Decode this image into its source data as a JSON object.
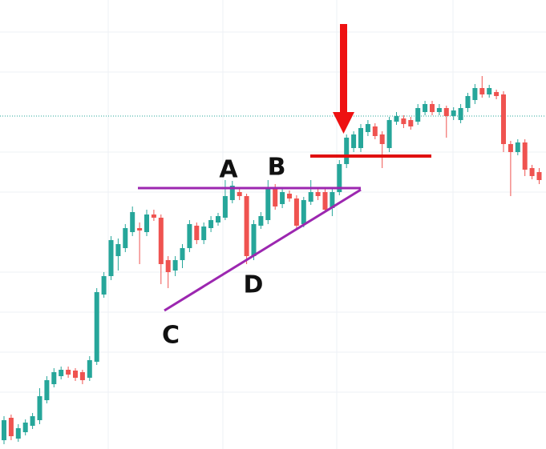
{
  "chart_data": {
    "type": "candlestick",
    "up_color": "#26a69a",
    "down_color": "#ef5350",
    "ylim": [
      0,
      560
    ],
    "open": [
      10,
      38,
      12,
      20,
      28,
      35,
      60,
      80,
      90,
      98,
      97,
      95,
      88,
      108,
      192,
      215,
      240,
      250,
      270,
      275,
      270,
      292,
      288,
      235,
      222,
      235,
      250,
      278,
      260,
      275,
      282,
      288,
      310,
      320,
      315,
      240,
      278,
      285,
      325,
      305,
      318,
      312,
      280,
      308,
      320,
      320,
      300,
      320,
      355,
      375,
      375,
      395,
      402,
      392,
      375,
      408,
      412,
      410,
      408,
      420,
      430,
      420,
      425,
      415,
      410,
      425,
      435,
      450,
      442,
      445,
      442,
      380,
      370,
      382,
      350,
      345
    ],
    "close": [
      35,
      15,
      25,
      32,
      40,
      65,
      85,
      95,
      98,
      92,
      88,
      85,
      110,
      195,
      215,
      260,
      255,
      275,
      295,
      272,
      292,
      288,
      230,
      220,
      235,
      250,
      280,
      260,
      277,
      285,
      290,
      315,
      328,
      315,
      240,
      280,
      290,
      325,
      302,
      320,
      312,
      278,
      310,
      320,
      315,
      298,
      320,
      355,
      388,
      392,
      400,
      405,
      390,
      380,
      410,
      415,
      405,
      402,
      425,
      430,
      420,
      425,
      415,
      422,
      425,
      440,
      450,
      442,
      450,
      440,
      380,
      370,
      382,
      348,
      340,
      335
    ],
    "high": [
      40,
      42,
      30,
      36,
      44,
      75,
      90,
      100,
      102,
      102,
      100,
      98,
      115,
      200,
      220,
      265,
      262,
      280,
      302,
      282,
      298,
      298,
      292,
      240,
      240,
      255,
      285,
      282,
      282,
      290,
      294,
      335,
      334,
      325,
      318,
      285,
      295,
      335,
      330,
      325,
      322,
      316,
      314,
      335,
      325,
      324,
      324,
      360,
      392,
      396,
      405,
      410,
      406,
      396,
      414,
      420,
      416,
      414,
      430,
      434,
      434,
      430,
      428,
      426,
      430,
      444,
      455,
      465,
      454,
      448,
      446,
      384,
      386,
      386,
      354,
      350
    ],
    "low": [
      5,
      10,
      8,
      16,
      24,
      30,
      56,
      76,
      86,
      88,
      84,
      80,
      84,
      104,
      188,
      210,
      222,
      245,
      265,
      230,
      265,
      284,
      205,
      200,
      215,
      225,
      245,
      255,
      255,
      270,
      278,
      285,
      306,
      310,
      230,
      235,
      274,
      280,
      298,
      300,
      308,
      275,
      276,
      304,
      310,
      294,
      290,
      316,
      350,
      370,
      370,
      390,
      386,
      350,
      370,
      404,
      400,
      398,
      404,
      416,
      416,
      416,
      388,
      410,
      406,
      420,
      430,
      438,
      438,
      436,
      370,
      315,
      366,
      340,
      336,
      330
    ],
    "annotations": [
      "A",
      "B",
      "C",
      "D"
    ]
  }
}
